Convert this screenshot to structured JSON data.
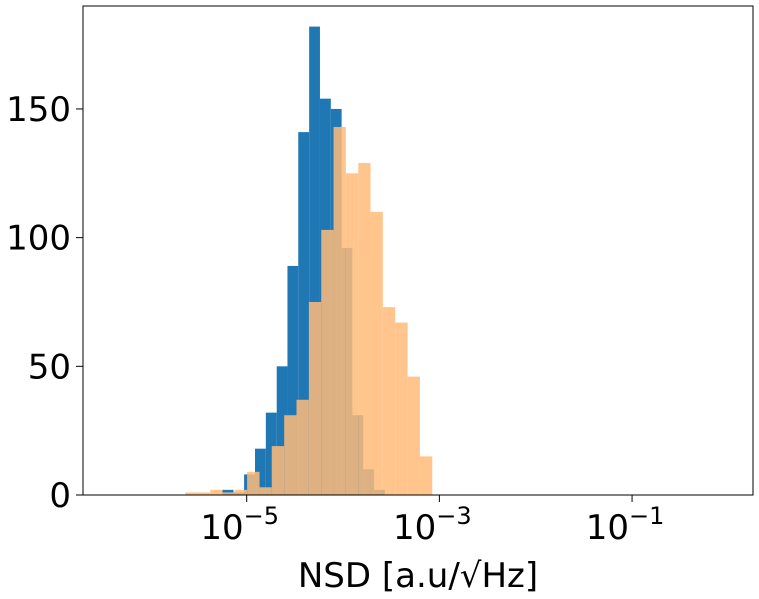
{
  "chart_data": {
    "type": "bar",
    "title": "",
    "xlabel": "NSD [a.u/√Hz]",
    "ylabel": "",
    "x_scale": "log",
    "xlim": [
      2e-07,
      1.8
    ],
    "ylim": [
      0,
      190
    ],
    "grid": false,
    "legend": "none",
    "x_ticks": [
      {
        "value": 1e-05,
        "base": "10",
        "exp": "−5"
      },
      {
        "value": 0.001,
        "base": "10",
        "exp": "−3"
      },
      {
        "value": 0.1,
        "base": "10",
        "exp": "−1"
      }
    ],
    "y_ticks": [
      0,
      50,
      100,
      150
    ],
    "y_tick_labels": [
      "0",
      "50",
      "100",
      "150"
    ],
    "series": [
      {
        "color": "#1f77b4",
        "opacity": 1,
        "bin_edges": [
          5.6e-06,
          7.3e-06,
          9.4e-06,
          1.22e-05,
          1.58e-05,
          2.05e-05,
          2.65e-05,
          3.43e-05,
          4.45e-05,
          5.76e-05,
          7.47e-05,
          9.67e-05,
          0.000125,
          0.000162,
          0.00021,
          0.000272
        ],
        "counts": [
          2,
          1,
          8,
          18,
          32,
          50,
          89,
          141,
          182,
          154,
          150,
          96,
          31,
          10,
          2
        ]
      },
      {
        "color": "#ffbb78",
        "opacity": 0.85,
        "bin_edges": [
          2.3e-06,
          3.1e-06,
          4.2e-06,
          5.6e-06,
          7.5e-06,
          1.01e-05,
          1.36e-05,
          1.82e-05,
          2.45e-05,
          3.29e-05,
          4.42e-05,
          5.94e-05,
          7.97e-05,
          0.000107,
          0.000144,
          0.000193,
          0.000259,
          0.000348,
          0.000468,
          0.000628,
          0.000843
        ],
        "counts": [
          1,
          1,
          2,
          1,
          2,
          9,
          3,
          19,
          31,
          37,
          75,
          103,
          143,
          125,
          129,
          110,
          73,
          67,
          46,
          15
        ]
      }
    ]
  }
}
